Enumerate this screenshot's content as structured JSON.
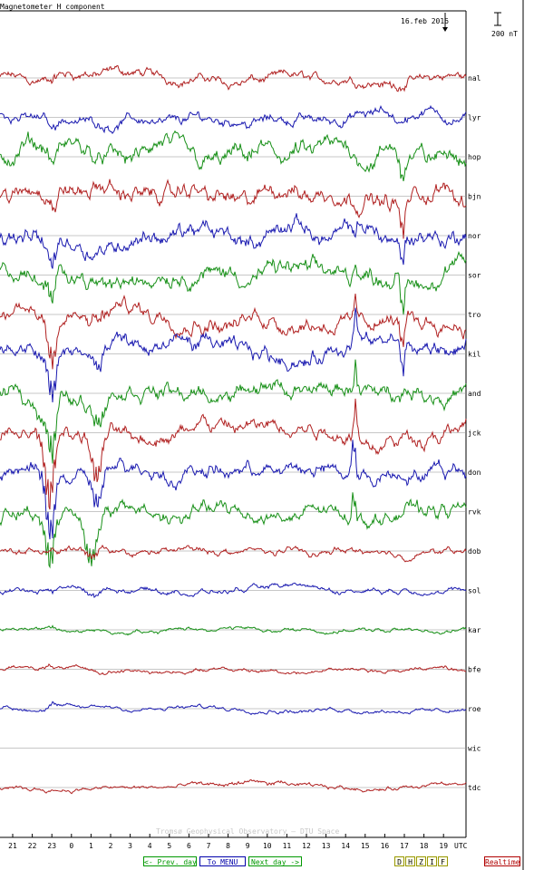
{
  "chart_data": {
    "type": "line",
    "title": "Magnetometer H component",
    "date_label": "16.feb 2016",
    "scale_label": "200 nT",
    "footer": "Tromsø Geophysical Observatory – DTU Space",
    "x_unit_label": "UTC",
    "x_ticks": [
      "21",
      "22",
      "23",
      "0",
      "1",
      "2",
      "3",
      "4",
      "5",
      "6",
      "7",
      "8",
      "9",
      "10",
      "11",
      "12",
      "13",
      "14",
      "15",
      "16",
      "17",
      "18",
      "19"
    ],
    "x_range_hours_utc": [
      20.45,
      20.2
    ],
    "grid": false,
    "colors": {
      "red": "#b02020",
      "blue": "#1a1ab0",
      "green": "#189018",
      "baseline": "#909090"
    },
    "stations": [
      {
        "name": "nal",
        "color": "red",
        "amp": 0.7,
        "events": [
          [
            23,
            -0.8,
            0.4
          ],
          [
            2,
            0.3,
            2.0
          ],
          [
            16.5,
            -0.8,
            0.6
          ],
          [
            17.6,
            -2.2,
            0.18
          ],
          [
            18.5,
            0.4,
            1.0
          ],
          [
            19.9,
            0.8,
            0.4
          ]
        ]
      },
      {
        "name": "lyr",
        "color": "blue",
        "amp": 0.8,
        "events": [
          [
            23,
            -1.5,
            0.2
          ],
          [
            2,
            -0.5,
            0.6
          ],
          [
            16.8,
            -1.2,
            0.3
          ],
          [
            17.5,
            -5.0,
            0.15
          ],
          [
            19.5,
            0.8,
            0.8
          ]
        ]
      },
      {
        "name": "hop",
        "color": "green",
        "amp": 1.4,
        "events": [
          [
            23.1,
            -2.0,
            0.2
          ],
          [
            1.8,
            0.6,
            0.5
          ],
          [
            9,
            -0.8,
            0.5
          ],
          [
            16.9,
            -3.5,
            0.18
          ],
          [
            17.5,
            -5.0,
            0.12
          ],
          [
            18.4,
            1.0,
            0.9
          ]
        ]
      },
      {
        "name": "bjn",
        "color": "red",
        "amp": 1.3,
        "events": [
          [
            23.2,
            -2.2,
            0.2
          ],
          [
            9.5,
            -0.8,
            0.6
          ],
          [
            16.9,
            -5.0,
            0.2
          ],
          [
            17.4,
            -5.5,
            0.15
          ],
          [
            18.5,
            1.5,
            0.6
          ]
        ]
      },
      {
        "name": "nor",
        "color": "blue",
        "amp": 1.3,
        "events": [
          [
            22.5,
            -1.0,
            0.3
          ],
          [
            23.0,
            -3.2,
            0.25
          ],
          [
            1.5,
            -1.0,
            0.6
          ],
          [
            14.5,
            -2.2,
            0.12
          ],
          [
            16.9,
            -4.0,
            0.15
          ],
          [
            17.2,
            -5.0,
            0.12
          ],
          [
            17.6,
            -3.0,
            0.2
          ]
        ]
      },
      {
        "name": "sor",
        "color": "green",
        "amp": 1.3,
        "events": [
          [
            22.5,
            -1.0,
            0.3
          ],
          [
            23.0,
            -4.5,
            0.25
          ],
          [
            1.5,
            -1.0,
            0.6
          ],
          [
            14.5,
            2.8,
            0.12
          ],
          [
            16.9,
            -5.0,
            0.15
          ],
          [
            17.2,
            -4.5,
            0.15
          ],
          [
            17.6,
            -3.0,
            0.2
          ]
        ]
      },
      {
        "name": "tro",
        "color": "red",
        "amp": 1.2,
        "events": [
          [
            22.4,
            -1.0,
            0.3
          ],
          [
            23.0,
            -5.5,
            0.28
          ],
          [
            1.4,
            -1.5,
            0.5
          ],
          [
            14.5,
            3.5,
            0.12
          ],
          [
            16.9,
            -4.5,
            0.15
          ],
          [
            17.3,
            -4.0,
            0.15
          ]
        ]
      },
      {
        "name": "kil",
        "color": "blue",
        "amp": 1.2,
        "events": [
          [
            22.4,
            -1.2,
            0.3
          ],
          [
            23.0,
            -6.5,
            0.3
          ],
          [
            1.4,
            -2.5,
            0.4
          ],
          [
            14.5,
            4.0,
            0.12
          ],
          [
            16.9,
            -3.5,
            0.15
          ],
          [
            17.3,
            -3.0,
            0.15
          ]
        ]
      },
      {
        "name": "and",
        "color": "green",
        "amp": 1.2,
        "events": [
          [
            22.4,
            -1.5,
            0.3
          ],
          [
            23.0,
            -8.0,
            0.3
          ],
          [
            1.4,
            -3.5,
            0.35
          ],
          [
            14.5,
            4.5,
            0.12
          ],
          [
            17.0,
            -2.5,
            0.15
          ]
        ]
      },
      {
        "name": "jck",
        "color": "red",
        "amp": 1.1,
        "events": [
          [
            22.4,
            -2.0,
            0.3
          ],
          [
            22.9,
            -10.0,
            0.3
          ],
          [
            1.3,
            -6.0,
            0.35
          ],
          [
            14.5,
            5.5,
            0.12
          ],
          [
            17.1,
            1.5,
            0.2
          ],
          [
            20.1,
            -6.0,
            0.2
          ]
        ]
      },
      {
        "name": "don",
        "color": "blue",
        "amp": 1.1,
        "events": [
          [
            22.4,
            -1.5,
            0.3
          ],
          [
            22.9,
            -9.0,
            0.3
          ],
          [
            1.3,
            -5.0,
            0.35
          ],
          [
            14.4,
            5.5,
            0.14
          ],
          [
            17.1,
            2.5,
            0.2
          ],
          [
            20.1,
            -5.0,
            0.2
          ]
        ]
      },
      {
        "name": "rvk",
        "color": "green",
        "amp": 1.1,
        "events": [
          [
            22.4,
            -1.0,
            0.3
          ],
          [
            22.9,
            -8.5,
            0.3
          ],
          [
            1.0,
            -6.0,
            0.45
          ],
          [
            14.4,
            4.5,
            0.14
          ],
          [
            17.1,
            3.0,
            0.25
          ],
          [
            20.2,
            -4.5,
            0.2
          ]
        ]
      },
      {
        "name": "dob",
        "color": "red",
        "amp": 0.5,
        "events": [
          [
            23.0,
            0.5,
            0.3
          ],
          [
            1.0,
            -1.5,
            0.4
          ],
          [
            17.0,
            0.8,
            0.5
          ]
        ]
      },
      {
        "name": "sol",
        "color": "blue",
        "amp": 0.4,
        "events": [
          [
            23.0,
            -0.5,
            0.3
          ],
          [
            1.0,
            -1.2,
            0.4
          ],
          [
            17.0,
            1.5,
            0.3
          ],
          [
            18.0,
            0.8,
            0.4
          ]
        ]
      },
      {
        "name": "kar",
        "color": "green",
        "amp": 0.3,
        "events": [
          [
            23.0,
            0.5,
            0.3
          ],
          [
            17.0,
            0.8,
            0.3
          ]
        ]
      },
      {
        "name": "bfe",
        "color": "red",
        "amp": 0.3,
        "events": [
          [
            23.0,
            0.4,
            0.3
          ],
          [
            17.2,
            0.4,
            0.4
          ]
        ]
      },
      {
        "name": "roe",
        "color": "blue",
        "amp": 0.3,
        "events": [
          [
            23.0,
            0.8,
            0.3
          ],
          [
            17.2,
            0.4,
            0.4
          ]
        ]
      },
      {
        "name": "wic",
        "color": "none",
        "amp": 0,
        "events": []
      },
      {
        "name": "tdc",
        "color": "red",
        "amp": 0.3,
        "events": [
          [
            9.0,
            0.4,
            2.0
          ],
          [
            18.5,
            -0.4,
            1.0
          ]
        ]
      }
    ]
  },
  "nav": {
    "prev_day": "<- Prev. day",
    "menu": "To MENU",
    "next_day": "Next day ->",
    "components": [
      "D",
      "H",
      "Z",
      "I",
      "F"
    ],
    "realtime": "Realtime"
  }
}
